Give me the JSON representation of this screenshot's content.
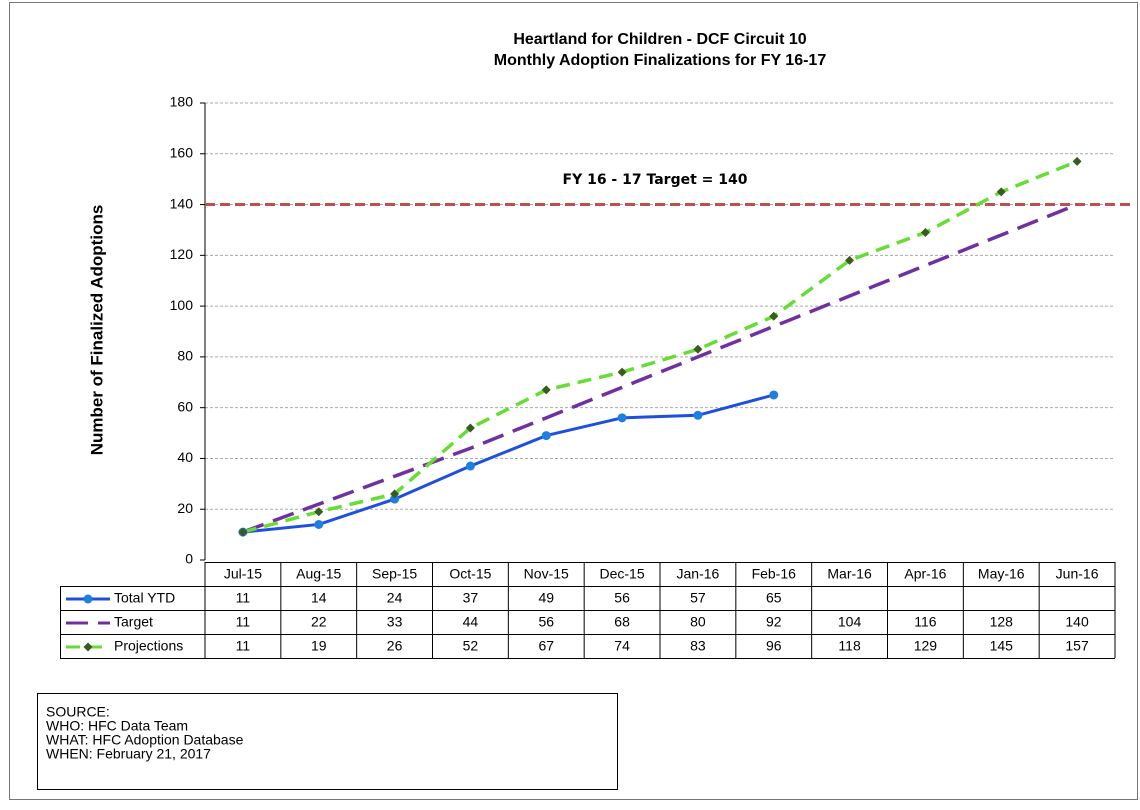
{
  "chart_data": {
    "type": "line",
    "title": [
      "Heartland for Children - DCF Circuit 10",
      "Monthly Adoption Finalizations for FY 16-17"
    ],
    "y_label": "Number of Finalized Adoptions",
    "categories": [
      "Jul-15",
      "Aug-15",
      "Sep-15",
      "Oct-15",
      "Nov-15",
      "Dec-15",
      "Jan-16",
      "Feb-16",
      "Mar-16",
      "Apr-16",
      "May-16",
      "Jun-16"
    ],
    "series": [
      {
        "name": "Total YTD",
        "color": "#1f4fe0",
        "dash": "solid",
        "marker": "circle",
        "marker_color": "#1f7fe0",
        "values": [
          11,
          14,
          24,
          37,
          49,
          56,
          57,
          65,
          null,
          null,
          null,
          null
        ]
      },
      {
        "name": "Target",
        "color": "#7030a0",
        "dash": "long",
        "marker": "none",
        "marker_color": "#7030a0",
        "values": [
          11,
          22,
          33,
          44,
          56,
          68,
          80,
          92,
          104,
          116,
          128,
          140
        ]
      },
      {
        "name": "Projections",
        "color": "#66dd33",
        "dash": "medium",
        "marker": "diamond",
        "marker_color": "#3a5a1e",
        "values": [
          11,
          19,
          26,
          52,
          67,
          74,
          83,
          96,
          118,
          129,
          145,
          157
        ]
      }
    ],
    "reference_line": {
      "value": 140,
      "label": "FY 16 - 17 Target = 140",
      "color": "#c0504d"
    },
    "ylim": [
      0,
      180
    ],
    "yticks": [
      0,
      20,
      40,
      60,
      80,
      100,
      120,
      140,
      160,
      180
    ],
    "grid": true,
    "data_table": true
  },
  "source": {
    "heading": "SOURCE:",
    "lines": [
      "WHO:  HFC Data Team",
      "WHAT: HFC Adoption Database",
      "WHEN: February 21, 2017"
    ]
  }
}
